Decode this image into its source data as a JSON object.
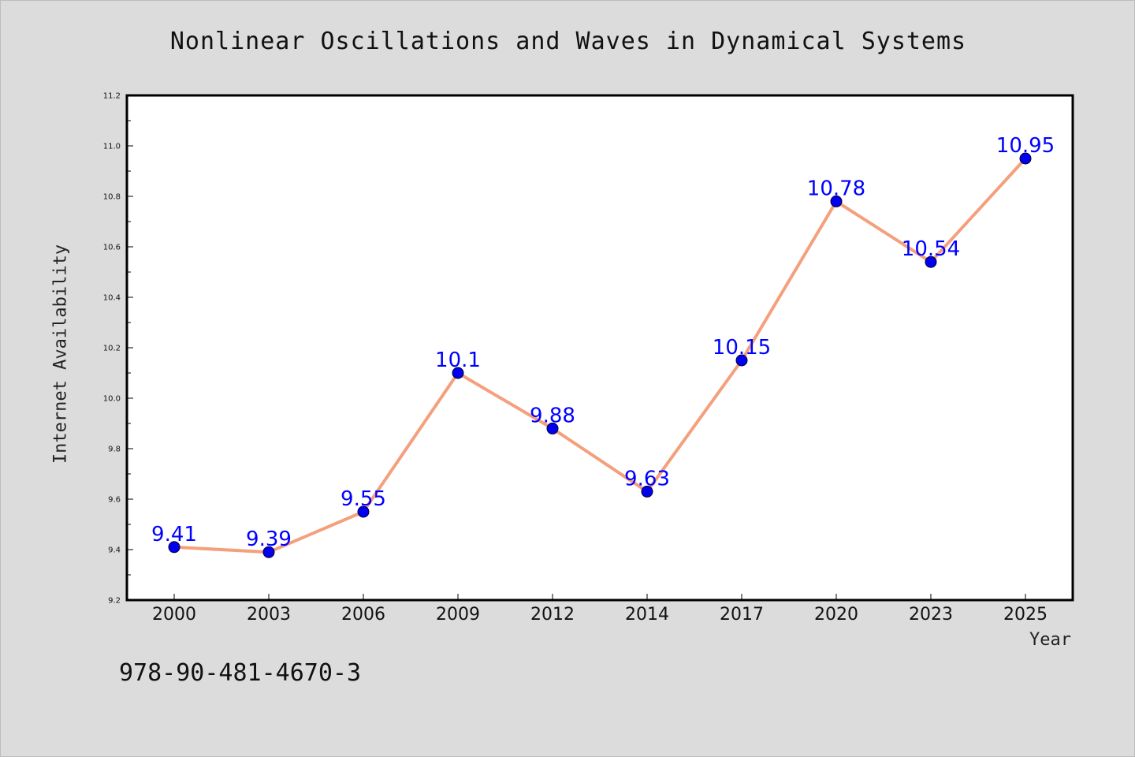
{
  "chart_data": {
    "type": "line",
    "title": "Nonlinear Oscillations and Waves in Dynamical Systems",
    "xlabel": "Year",
    "ylabel": "Internet Availability",
    "categories": [
      "2000",
      "2003",
      "2006",
      "2009",
      "2012",
      "2014",
      "2017",
      "2020",
      "2023",
      "2025"
    ],
    "series": [
      {
        "values": [
          9.41,
          9.39,
          9.55,
          10.1,
          9.88,
          9.63,
          10.15,
          10.78,
          10.54,
          10.95
        ],
        "data_labels": [
          "9.41",
          "9.39",
          "9.55",
          "10.1",
          "9.88",
          "9.63",
          "10.15",
          "10.78",
          "10.54",
          "10.95"
        ]
      }
    ],
    "ylim": [
      9.2,
      11.2
    ],
    "yticks": [
      "9.2",
      "9.4",
      "9.6",
      "9.8",
      "10.0",
      "10.2",
      "10.4",
      "10.6",
      "10.8",
      "11.0",
      "11.2"
    ],
    "grid": false,
    "legend": "none",
    "colors": {
      "line": "#f4a07c",
      "marker": "#0000ee",
      "label": "#0000ff"
    }
  },
  "footer_text": "978-90-481-4670-3"
}
